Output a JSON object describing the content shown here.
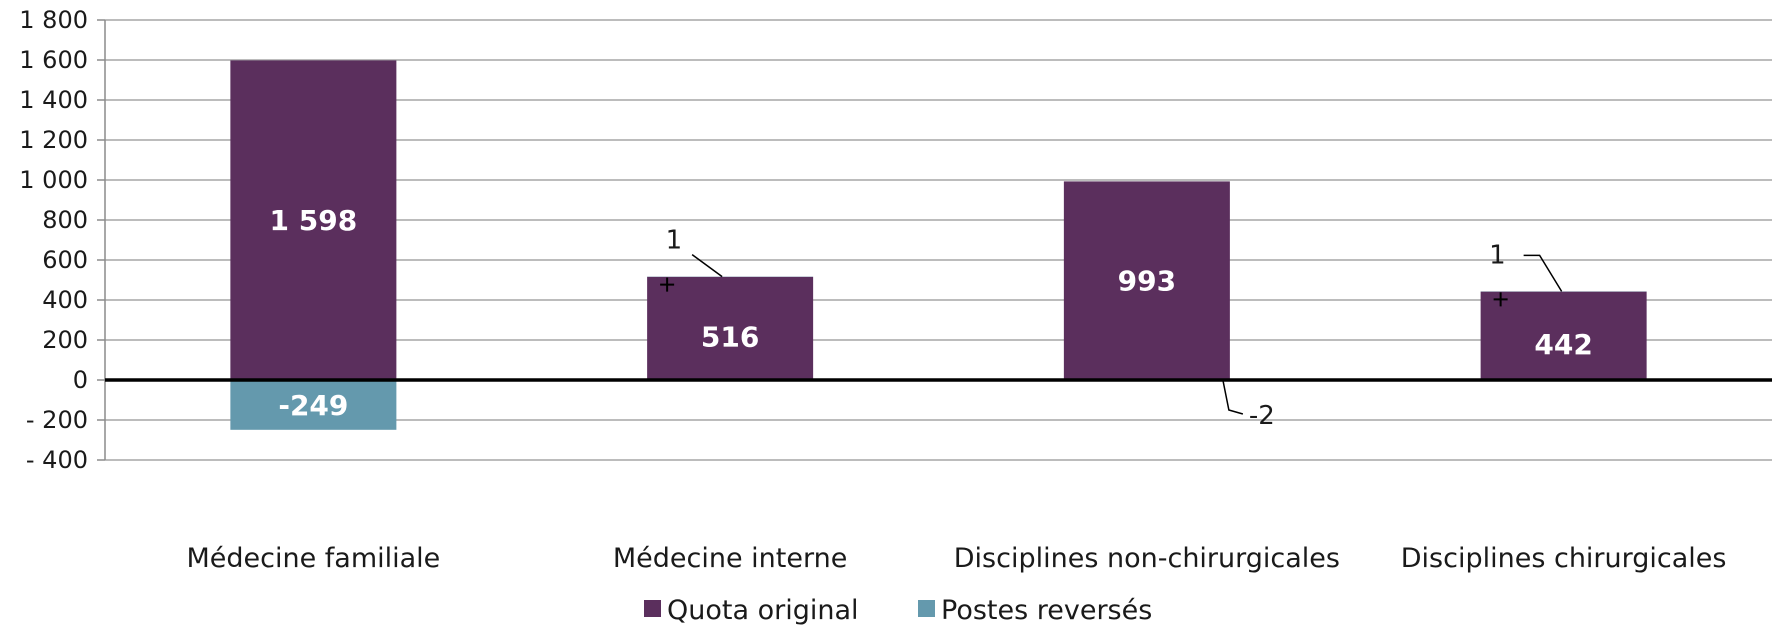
{
  "chart_data": {
    "type": "bar",
    "stacked": true,
    "categories": [
      "Médecine familiale",
      "Médecine interne",
      "Disciplines non-chirurgicales",
      "Disciplines chirurgicales"
    ],
    "series": [
      {
        "name": "Quota original",
        "color": "#5b2f5d",
        "values": [
          1598,
          516,
          993,
          442
        ],
        "labels": [
          "1 598",
          "516",
          "993",
          "442"
        ]
      },
      {
        "name": "Postes reversés",
        "color": "#6499ad",
        "values": [
          -249,
          1,
          -2,
          1
        ],
        "labels": [
          "-249",
          "1",
          "-2",
          "1"
        ]
      }
    ],
    "ylim": [
      -400,
      1800
    ],
    "yticks": [
      1800,
      1600,
      1400,
      1200,
      1000,
      800,
      600,
      400,
      200,
      0,
      -200,
      -400
    ],
    "ytick_labels": [
      "1 800",
      "1 600",
      "1 400",
      "1 200",
      "1 000",
      "800",
      "600",
      "400",
      "200",
      "0",
      "- 200",
      "- 400"
    ],
    "grid": true,
    "legend_position": "bottom",
    "title": "",
    "xlabel": "",
    "ylabel": ""
  }
}
